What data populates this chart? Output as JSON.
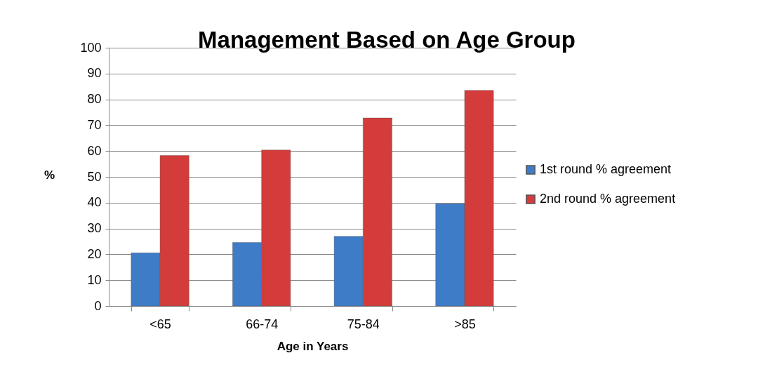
{
  "chart_data": {
    "type": "bar",
    "title": "Management Based on Age Group",
    "xlabel": "Age in Years",
    "ylabel": "%",
    "categories": [
      "<65",
      "66-74",
      "75-84",
      ">85"
    ],
    "series": [
      {
        "name": "1st round % agreement",
        "color": "#3e7cc8",
        "values": [
          20.6,
          24.6,
          27.0,
          39.6
        ]
      },
      {
        "name": "2nd round % agreement",
        "color": "#d33c3a",
        "values": [
          58.3,
          60.4,
          72.8,
          83.5
        ]
      }
    ],
    "ylim": [
      0,
      100
    ],
    "yticks": [
      0,
      10,
      20,
      30,
      40,
      50,
      60,
      70,
      80,
      90,
      100
    ],
    "grid": "y",
    "legend": "right"
  }
}
